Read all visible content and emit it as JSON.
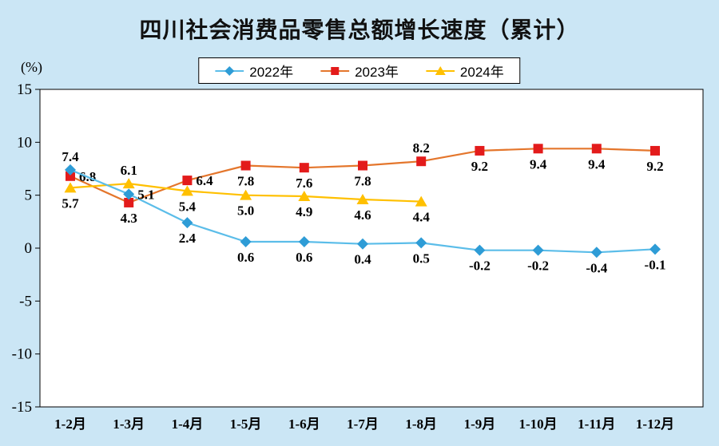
{
  "title": "四川社会消费品零售总额增长速度（累计）",
  "unit_label": "(%)",
  "colors": {
    "background": "#CBE6F5",
    "plot_background": "#FFFFFF",
    "axis": "#000000",
    "label_text": "#000000"
  },
  "chart_data": {
    "type": "line",
    "categories": [
      "1-2月",
      "1-3月",
      "1-4月",
      "1-5月",
      "1-6月",
      "1-7月",
      "1-8月",
      "1-9月",
      "1-10月",
      "1-11月",
      "1-12月"
    ],
    "series": [
      {
        "name": "2022年",
        "marker": "diamond",
        "marker_color": "#2E9CD6",
        "line_color": "#5BBDE9",
        "values": [
          7.4,
          5.1,
          2.4,
          0.6,
          0.6,
          0.4,
          0.5,
          -0.2,
          -0.2,
          -0.4,
          -0.1
        ],
        "label_pos": [
          "above",
          "right",
          "below",
          "below",
          "below",
          "below",
          "below",
          "below",
          "below",
          "below",
          "below"
        ]
      },
      {
        "name": "2023年",
        "marker": "square",
        "marker_color": "#E31B1B",
        "line_color": "#E4762C",
        "values": [
          6.8,
          4.3,
          6.4,
          7.8,
          7.6,
          7.8,
          8.2,
          9.2,
          9.4,
          9.4,
          9.2
        ],
        "label_pos": [
          "right",
          "below",
          "right",
          "below",
          "below",
          "below",
          "above",
          "below",
          "below",
          "below",
          "below"
        ]
      },
      {
        "name": "2024年",
        "marker": "triangle",
        "marker_color": "#FFC000",
        "line_color": "#FFC000",
        "values": [
          5.7,
          6.1,
          5.4,
          5.0,
          4.9,
          4.6,
          4.4,
          null,
          null,
          null,
          null
        ],
        "label_pos": [
          "below",
          "above",
          "below",
          "below",
          "below",
          "below",
          "below"
        ]
      }
    ],
    "ylim": [
      -15,
      15
    ],
    "ytick_step": 5,
    "grid": false,
    "legend_position": "top-center"
  }
}
